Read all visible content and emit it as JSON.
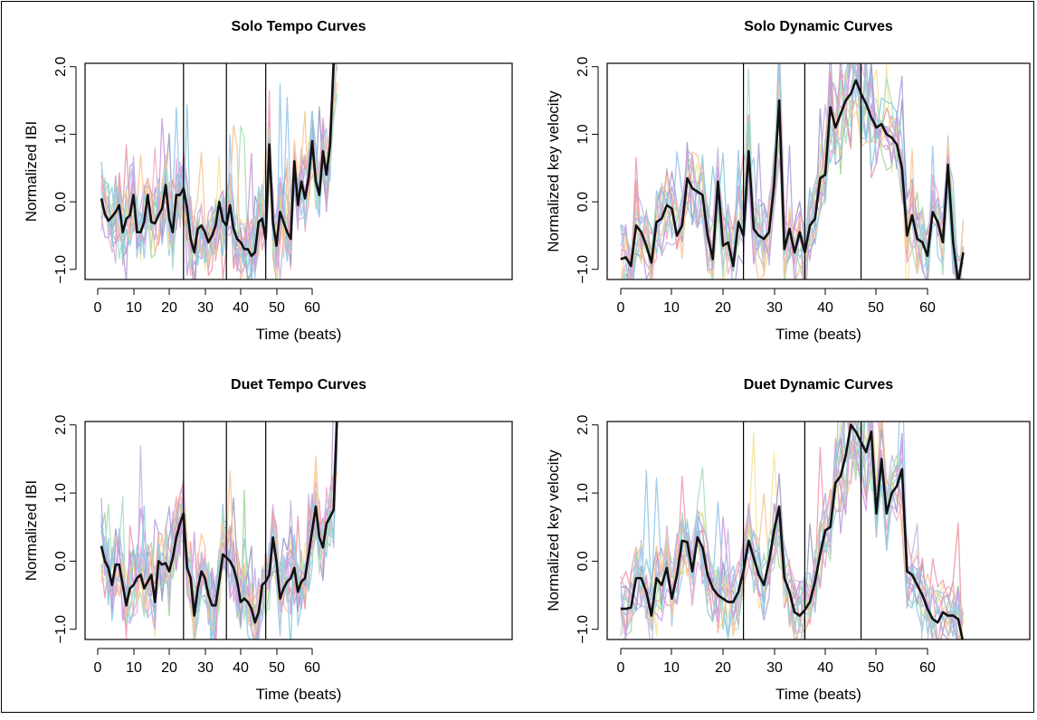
{
  "chart_data": [
    {
      "type": "line",
      "title": "Solo Tempo Curves",
      "xlabel": "Time (beats)",
      "ylabel": "Normalized IBI",
      "xticks": [
        "0",
        "10",
        "20",
        "30",
        "40",
        "50",
        "60"
      ],
      "yticks": [
        "−1.0",
        "0.0",
        "1.0",
        "2.0"
      ],
      "xlim": [
        1,
        67
      ],
      "ylim": [
        -1.15,
        2.05
      ],
      "vlines": [
        24,
        36,
        47
      ],
      "mean_x_start": 1,
      "mean": [
        0.05,
        -0.18,
        -0.28,
        -0.22,
        -0.15,
        -0.05,
        -0.45,
        -0.25,
        -0.2,
        0.1,
        -0.45,
        -0.45,
        -0.3,
        0.1,
        -0.3,
        -0.32,
        -0.2,
        -0.1,
        0.25,
        -0.25,
        -0.45,
        0.1,
        0.1,
        0.2,
        -0.1,
        -0.55,
        -0.75,
        -0.4,
        -0.35,
        -0.45,
        -0.6,
        -0.5,
        -0.35,
        0.0,
        -0.28,
        -0.35,
        -0.05,
        -0.4,
        -0.55,
        -0.6,
        -0.7,
        -0.7,
        -0.8,
        -0.75,
        -0.3,
        -0.25,
        -0.55,
        0.85,
        -0.3,
        -0.65,
        -0.15,
        -0.3,
        -0.45,
        -0.55,
        0.6,
        -0.05,
        0.3,
        0.05,
        0.35,
        0.9,
        0.3,
        0.1,
        0.75,
        0.4,
        0.85,
        2.05,
        2.4
      ],
      "light_traces": 14,
      "palette": [
        "#f2a0b4",
        "#99ccee",
        "#b7a7e0",
        "#a8d8a0",
        "#f5e6a0",
        "#f0b0d0",
        "#9ec8f0",
        "#c8b8e8",
        "#a0a0c8",
        "#e8a0a8",
        "#b0e0c0",
        "#f8c89c",
        "#d0a0e0",
        "#90d0e0"
      ],
      "mean_color": "#111111"
    },
    {
      "type": "line",
      "title": "Solo Dynamic Curves",
      "xlabel": "Time (beats)",
      "ylabel": "Normalized key velocity",
      "xticks": [
        "0",
        "10",
        "20",
        "30",
        "40",
        "50",
        "60"
      ],
      "yticks": [
        "−1.0",
        "0.0",
        "1.0",
        "2.0"
      ],
      "xlim": [
        0,
        67
      ],
      "ylim": [
        -1.15,
        2.05
      ],
      "vlines": [
        24,
        36,
        47
      ],
      "mean_x_start": 0,
      "mean": [
        -0.85,
        -0.82,
        -0.95,
        -0.35,
        -0.45,
        -0.65,
        -0.9,
        -0.3,
        -0.25,
        -0.05,
        -0.1,
        -0.5,
        -0.35,
        0.35,
        0.2,
        0.15,
        0.1,
        -0.5,
        -0.85,
        0.3,
        -0.65,
        -0.6,
        -0.95,
        -0.3,
        -0.5,
        0.75,
        -0.4,
        -0.5,
        -0.55,
        -0.45,
        0.25,
        1.5,
        -0.7,
        -0.4,
        -0.75,
        -0.45,
        -0.75,
        -0.35,
        -0.25,
        0.35,
        0.4,
        1.4,
        1.1,
        1.3,
        1.5,
        1.6,
        1.8,
        1.6,
        1.45,
        1.25,
        1.1,
        1.15,
        1.0,
        0.95,
        0.85,
        0.5,
        -0.5,
        -0.2,
        -0.55,
        -0.6,
        -0.8,
        -0.15,
        -0.3,
        -0.6,
        0.55,
        -0.6,
        -1.2,
        -0.75
      ],
      "light_traces": 14,
      "palette": [
        "#f2a0b4",
        "#99ccee",
        "#b7a7e0",
        "#a8d8a0",
        "#f5e6a0",
        "#f0b0d0",
        "#9ec8f0",
        "#c8b8e8",
        "#a0a0c8",
        "#e8a0a8",
        "#b0e0c0",
        "#f8c89c",
        "#d0a0e0",
        "#90d0e0"
      ],
      "mean_color": "#111111"
    },
    {
      "type": "line",
      "title": "Duet Tempo Curves",
      "xlabel": "Time (beats)",
      "ylabel": "Normalized IBI",
      "xticks": [
        "0",
        "10",
        "20",
        "30",
        "40",
        "50",
        "60"
      ],
      "yticks": [
        "−1.0",
        "0.0",
        "1.0",
        "2.0"
      ],
      "xlim": [
        1,
        67
      ],
      "ylim": [
        -1.15,
        2.05
      ],
      "vlines": [
        24,
        36,
        47
      ],
      "mean_x_start": 1,
      "mean": [
        0.22,
        0.0,
        -0.1,
        -0.35,
        -0.05,
        -0.05,
        -0.35,
        -0.65,
        -0.4,
        -0.35,
        -0.25,
        -0.2,
        -0.4,
        -0.3,
        -0.2,
        -0.6,
        0.0,
        -0.05,
        -0.03,
        -0.15,
        0.05,
        0.35,
        0.55,
        0.7,
        -0.1,
        -0.25,
        -0.8,
        -0.4,
        -0.15,
        -0.25,
        -0.5,
        -0.65,
        -0.65,
        -0.3,
        0.1,
        0.05,
        0.0,
        -0.1,
        -0.3,
        -0.6,
        -0.55,
        -0.6,
        -0.7,
        -0.9,
        -0.75,
        -0.35,
        -0.3,
        -0.2,
        0.35,
        0.0,
        -0.55,
        -0.4,
        -0.3,
        -0.25,
        -0.1,
        -0.45,
        -0.3,
        -0.25,
        0.1,
        0.45,
        0.8,
        0.35,
        0.2,
        0.55,
        0.65,
        0.75,
        2.2
      ],
      "light_traces": 14,
      "palette": [
        "#f2a0b4",
        "#99ccee",
        "#b7a7e0",
        "#a8d8a0",
        "#f5e6a0",
        "#f0b0d0",
        "#9ec8f0",
        "#c8b8e8",
        "#a0a0c8",
        "#e8a0a8",
        "#b0e0c0",
        "#f8c89c",
        "#d0a0e0",
        "#90d0e0"
      ],
      "mean_color": "#111111"
    },
    {
      "type": "line",
      "title": "Duet Dynamic Curves",
      "xlabel": "Time (beats)",
      "ylabel": "Normalized key velocity",
      "xticks": [
        "0",
        "10",
        "20",
        "30",
        "40",
        "50",
        "60"
      ],
      "yticks": [
        "−1.0",
        "0.0",
        "1.0",
        "2.0"
      ],
      "xlim": [
        0,
        67
      ],
      "ylim": [
        -1.15,
        2.05
      ],
      "vlines": [
        24,
        36,
        47
      ],
      "mean_x_start": 0,
      "mean": [
        -0.7,
        -0.7,
        -0.68,
        -0.25,
        -0.25,
        -0.45,
        -0.8,
        -0.25,
        -0.35,
        -0.1,
        -0.55,
        -0.2,
        0.3,
        0.28,
        -0.15,
        0.35,
        0.2,
        -0.2,
        -0.4,
        -0.5,
        -0.55,
        -0.6,
        -0.6,
        -0.45,
        -0.15,
        0.3,
        0.05,
        -0.2,
        -0.35,
        0.0,
        0.45,
        0.8,
        -0.25,
        -0.45,
        -0.75,
        -0.8,
        -0.72,
        -0.6,
        -0.3,
        0.1,
        0.45,
        0.5,
        1.15,
        1.25,
        1.55,
        2.0,
        1.9,
        1.75,
        1.6,
        1.9,
        0.7,
        1.5,
        0.7,
        1.0,
        1.1,
        1.35,
        -0.15,
        -0.2,
        -0.35,
        -0.5,
        -0.7,
        -0.85,
        -0.9,
        -0.75,
        -0.8,
        -0.8,
        -0.85,
        -1.2
      ],
      "light_traces": 14,
      "palette": [
        "#f2a0b4",
        "#99ccee",
        "#b7a7e0",
        "#a8d8a0",
        "#f5e6a0",
        "#f0b0d0",
        "#9ec8f0",
        "#c8b8e8",
        "#a0a0c8",
        "#e8a0a8",
        "#b0e0c0",
        "#f8c89c",
        "#d0a0e0",
        "#90d0e0"
      ],
      "mean_color": "#111111"
    }
  ]
}
